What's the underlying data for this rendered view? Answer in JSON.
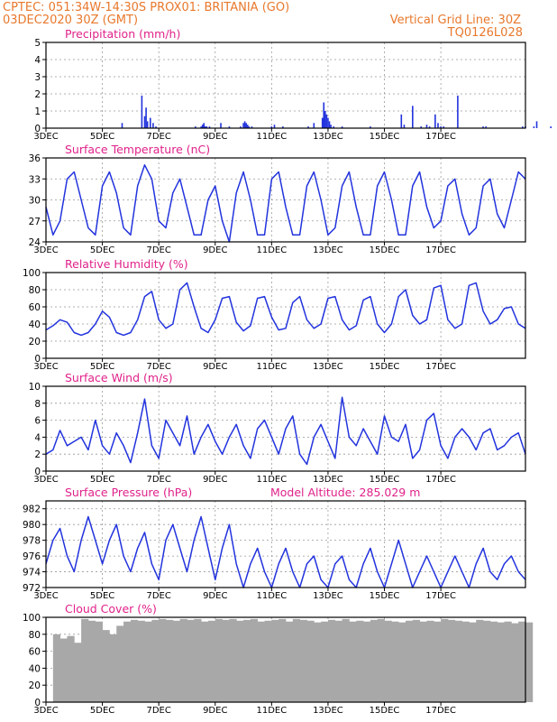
{
  "header": {
    "line1_left": "CPTEC:   051:34W-14:30S   PROX01: BRITANIA (GO)",
    "line2_left": "03DEC2020 30Z (GMT)",
    "line2_right": "Vertical Grid Line: 30Z",
    "line3_right": "TQ0126L028"
  },
  "colors": {
    "series": "#2233dd",
    "bars": "#2233dd",
    "cloud": "#a8a8a8",
    "header": "#e8782c",
    "title": "#e0218a"
  },
  "x_ticks": [
    "3DEC",
    "5DEC",
    "7DEC",
    "9DEC",
    "11DEC",
    "13DEC",
    "15DEC",
    "17DEC"
  ],
  "chart_data": [
    {
      "type": "bar",
      "title": "Precipitation (mm/h)",
      "ylim": [
        0,
        5
      ],
      "yticks": [
        0,
        1,
        2,
        3,
        4,
        5
      ],
      "x_unit": "days since 3DEC 00Z",
      "x": [
        2.7,
        3.4,
        3.5,
        3.55,
        3.6,
        3.7,
        3.8,
        3.9,
        5.3,
        5.5,
        5.55,
        5.6,
        5.65,
        5.7,
        5.8,
        6.2,
        6.5,
        6.9,
        7.0,
        7.05,
        7.1,
        7.15,
        7.2,
        7.3,
        8.0,
        8.1,
        8.4,
        9.3,
        9.5,
        9.8,
        9.85,
        9.9,
        9.95,
        10.0,
        10.05,
        10.1,
        10.2,
        10.5,
        11.5,
        12.6,
        12.7,
        13.0,
        13.3,
        13.5,
        13.6,
        13.8,
        13.9,
        14.0,
        14.1,
        14.6,
        15.5,
        15.6,
        16.9,
        17.0,
        17.3,
        17.4,
        17.9
      ],
      "values": [
        0.3,
        1.9,
        0.7,
        1.2,
        0.4,
        0.6,
        0.3,
        0.1,
        0.1,
        0.1,
        0.2,
        0.3,
        0.1,
        0.1,
        0.1,
        0.3,
        0.1,
        0.1,
        0.3,
        0.4,
        0.3,
        0.2,
        0.1,
        0.1,
        0.1,
        0.2,
        0.1,
        0.1,
        0.3,
        0.6,
        1.5,
        1.0,
        0.8,
        0.6,
        0.4,
        0.2,
        0.1,
        0.1,
        0.1,
        0.8,
        0.2,
        1.3,
        0.1,
        0.2,
        0.1,
        0.8,
        0.3,
        0.1,
        0.1,
        1.9,
        0.1,
        0.1,
        0.1,
        0.1,
        0.1,
        0.4,
        0.1
      ]
    },
    {
      "type": "line",
      "title": "Surface Temperature (nC)",
      "ylim": [
        24,
        36
      ],
      "yticks": [
        24,
        27,
        30,
        33,
        36
      ],
      "x_unit": "days since 3DEC 00Z",
      "x": [
        0,
        0.25,
        0.5,
        0.75,
        1,
        1.25,
        1.5,
        1.75,
        2,
        2.25,
        2.5,
        2.75,
        3,
        3.25,
        3.5,
        3.75,
        4,
        4.25,
        4.5,
        4.75,
        5,
        5.25,
        5.5,
        5.75,
        6,
        6.25,
        6.5,
        6.75,
        7,
        7.25,
        7.5,
        7.75,
        8,
        8.25,
        8.5,
        8.75,
        9,
        9.25,
        9.5,
        9.75,
        10,
        10.25,
        10.5,
        10.75,
        11,
        11.25,
        11.5,
        11.75,
        12,
        12.25,
        12.5,
        12.75,
        13,
        13.25,
        13.5,
        13.75,
        14,
        14.25,
        14.5,
        14.75,
        15,
        15.25,
        15.5,
        15.75,
        16,
        16.25,
        16.5,
        16.75,
        17
      ],
      "values": [
        29,
        25,
        27,
        33,
        34,
        30,
        26,
        25,
        32,
        34,
        31,
        26,
        25,
        32,
        35,
        33,
        27,
        26,
        31,
        33,
        29,
        25,
        25,
        30,
        32,
        27,
        24,
        31,
        34,
        30,
        25,
        25,
        33,
        34,
        29,
        25,
        25,
        32,
        34,
        30,
        25,
        26,
        32,
        34,
        29,
        25,
        25,
        32,
        34,
        30,
        25,
        25,
        32,
        34,
        29,
        26,
        27,
        32,
        33,
        28,
        25,
        26,
        32,
        33,
        28,
        26,
        30,
        34,
        33
      ]
    },
    {
      "type": "line",
      "title": "Relative Humidity (%)",
      "ylim": [
        0,
        100
      ],
      "yticks": [
        0,
        20,
        40,
        60,
        80,
        100
      ],
      "x_unit": "days since 3DEC 00Z",
      "x": [
        0,
        0.25,
        0.5,
        0.75,
        1,
        1.25,
        1.5,
        1.75,
        2,
        2.25,
        2.5,
        2.75,
        3,
        3.25,
        3.5,
        3.75,
        4,
        4.25,
        4.5,
        4.75,
        5,
        5.25,
        5.5,
        5.75,
        6,
        6.25,
        6.5,
        6.75,
        7,
        7.25,
        7.5,
        7.75,
        8,
        8.25,
        8.5,
        8.75,
        9,
        9.25,
        9.5,
        9.75,
        10,
        10.25,
        10.5,
        10.75,
        11,
        11.25,
        11.5,
        11.75,
        12,
        12.25,
        12.5,
        12.75,
        13,
        13.25,
        13.5,
        13.75,
        14,
        14.25,
        14.5,
        14.75,
        15,
        15.25,
        15.5,
        15.75,
        16,
        16.25,
        16.5,
        16.75,
        17
      ],
      "values": [
        33,
        38,
        45,
        42,
        30,
        27,
        30,
        40,
        55,
        48,
        30,
        27,
        30,
        45,
        72,
        78,
        45,
        35,
        40,
        80,
        88,
        60,
        35,
        30,
        45,
        70,
        72,
        42,
        32,
        38,
        70,
        72,
        48,
        33,
        35,
        65,
        72,
        45,
        35,
        40,
        70,
        72,
        45,
        33,
        38,
        68,
        72,
        40,
        30,
        40,
        72,
        80,
        50,
        40,
        45,
        82,
        85,
        45,
        35,
        40,
        85,
        88,
        55,
        40,
        45,
        58,
        60,
        40,
        35
      ]
    },
    {
      "type": "line",
      "title": "Surface Wind (m/s)",
      "ylim": [
        0,
        10
      ],
      "yticks": [
        0,
        2,
        4,
        6,
        8,
        10
      ],
      "x_unit": "days since 3DEC 00Z",
      "x": [
        0,
        0.25,
        0.5,
        0.75,
        1,
        1.25,
        1.5,
        1.75,
        2,
        2.25,
        2.5,
        2.75,
        3,
        3.25,
        3.5,
        3.75,
        4,
        4.25,
        4.5,
        4.75,
        5,
        5.25,
        5.5,
        5.75,
        6,
        6.25,
        6.5,
        6.75,
        7,
        7.25,
        7.5,
        7.75,
        8,
        8.25,
        8.5,
        8.75,
        9,
        9.25,
        9.5,
        9.75,
        10,
        10.25,
        10.5,
        10.75,
        11,
        11.25,
        11.5,
        11.75,
        12,
        12.25,
        12.5,
        12.75,
        13,
        13.25,
        13.5,
        13.75,
        14,
        14.25,
        14.5,
        14.75,
        15,
        15.25,
        15.5,
        15.75,
        16,
        16.25,
        16.5,
        16.75,
        17
      ],
      "values": [
        2,
        2.5,
        4.8,
        3,
        3.5,
        4,
        2.5,
        6,
        3,
        2,
        4.5,
        3,
        1,
        4.5,
        8.5,
        3,
        1.5,
        6,
        4.5,
        3,
        6.5,
        2,
        4,
        5.5,
        3.5,
        2,
        4,
        5.5,
        3,
        1.5,
        5,
        6,
        4,
        2,
        5,
        6.5,
        2,
        0.8,
        4,
        5.5,
        3.5,
        1.5,
        8.7,
        4,
        3,
        5,
        3.5,
        2,
        6.5,
        4,
        3.5,
        5.5,
        1.5,
        2.5,
        6,
        6.8,
        3,
        1.5,
        4,
        5,
        4,
        2.5,
        4.5,
        5,
        2.5,
        3,
        4,
        4.5,
        2
      ]
    },
    {
      "type": "line",
      "title": "Surface Pressure (hPa)",
      "subtitle": "Model Altitude: 285.029  m",
      "ylim": [
        972,
        983
      ],
      "yticks": [
        972,
        974,
        976,
        978,
        980,
        982
      ],
      "x_unit": "days since 3DEC 00Z",
      "x": [
        0,
        0.25,
        0.5,
        0.75,
        1,
        1.25,
        1.5,
        1.75,
        2,
        2.25,
        2.5,
        2.75,
        3,
        3.25,
        3.5,
        3.75,
        4,
        4.25,
        4.5,
        4.75,
        5,
        5.25,
        5.5,
        5.75,
        6,
        6.25,
        6.5,
        6.75,
        7,
        7.25,
        7.5,
        7.75,
        8,
        8.25,
        8.5,
        8.75,
        9,
        9.25,
        9.5,
        9.75,
        10,
        10.25,
        10.5,
        10.75,
        11,
        11.25,
        11.5,
        11.75,
        12,
        12.25,
        12.5,
        12.75,
        13,
        13.25,
        13.5,
        13.75,
        14,
        14.25,
        14.5,
        14.75,
        15,
        15.25,
        15.5,
        15.75,
        16,
        16.25,
        16.5,
        16.75,
        17
      ],
      "values": [
        975,
        978,
        979.5,
        976,
        974,
        978,
        981,
        978,
        975,
        978,
        980,
        976,
        974,
        977,
        979,
        975,
        973,
        978,
        980,
        977,
        974,
        978,
        981,
        977,
        973,
        977,
        980,
        975,
        972,
        975,
        977,
        974,
        972,
        975,
        977,
        974,
        972,
        975,
        976,
        973,
        972,
        975,
        976,
        973,
        972,
        975,
        977,
        974,
        972,
        975,
        978,
        975,
        972,
        974,
        976,
        974,
        972,
        974,
        976,
        974,
        972,
        975,
        977,
        974,
        973,
        975,
        976,
        974,
        973
      ]
    },
    {
      "type": "bar",
      "title": "Cloud Cover (%)",
      "ylim": [
        0,
        100
      ],
      "yticks": [
        0,
        20,
        40,
        60,
        80,
        100
      ],
      "x_unit": "days since 3DEC 00Z",
      "x": [
        0,
        0.25,
        0.5,
        0.75,
        1,
        1.25,
        1.5,
        1.75,
        2,
        2.25,
        2.5,
        2.75,
        3,
        3.25,
        3.5,
        3.75,
        4,
        4.25,
        4.5,
        4.75,
        5,
        5.25,
        5.5,
        5.75,
        6,
        6.25,
        6.5,
        6.75,
        7,
        7.25,
        7.5,
        7.75,
        8,
        8.25,
        8.5,
        8.75,
        9,
        9.25,
        9.5,
        9.75,
        10,
        10.25,
        10.5,
        10.75,
        11,
        11.25,
        11.5,
        11.75,
        12,
        12.25,
        12.5,
        12.75,
        13,
        13.25,
        13.5,
        13.75,
        14,
        14.25,
        14.5,
        14.75,
        15,
        15.25,
        15.5,
        15.75,
        16,
        16.25,
        16.5,
        16.75,
        17
      ],
      "values": [
        0,
        80,
        75,
        78,
        70,
        98,
        96,
        95,
        85,
        80,
        90,
        95,
        97,
        96,
        95,
        97,
        98,
        97,
        96,
        98,
        97,
        98,
        95,
        96,
        98,
        97,
        98,
        96,
        97,
        98,
        95,
        96,
        97,
        98,
        95,
        98,
        97,
        96,
        94,
        95,
        97,
        96,
        98,
        95,
        96,
        95,
        97,
        98,
        96,
        95,
        94,
        96,
        97,
        95,
        96,
        95,
        98,
        97,
        96,
        95,
        94,
        97,
        96,
        95,
        94,
        95,
        93,
        95,
        94
      ]
    }
  ]
}
